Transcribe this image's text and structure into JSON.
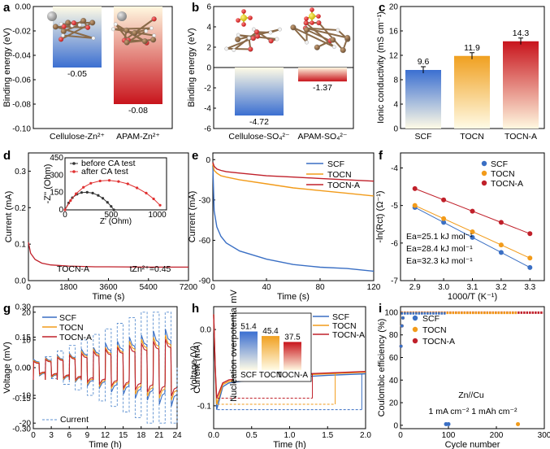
{
  "panels": [
    {
      "id": "a",
      "ylabel": "Binding energy (eV)",
      "yticks": [
        "0.00",
        "-0.02",
        "-0.04",
        "-0.06",
        "-0.08",
        "-0.10"
      ],
      "chart_data": {
        "type": "bar",
        "categories": [
          "Cellulose-Zn²⁺",
          "APAM-Zn²⁺"
        ],
        "values": [
          -0.05,
          -0.08
        ],
        "value_labels": [
          "-0.05",
          "-0.08"
        ],
        "ylabel": "Binding energy (eV)",
        "ylim": [
          -0.1,
          0.0
        ]
      }
    },
    {
      "id": "b",
      "ylabel": "Binding energy (eV)",
      "yticks": [
        "6",
        "4",
        "2",
        "0",
        "-2",
        "-4",
        "-6"
      ],
      "chart_data": {
        "type": "bar",
        "categories": [
          "Cellulose-SO₄²⁻",
          "APAM-SO₄²⁻"
        ],
        "values": [
          -4.72,
          -1.37
        ],
        "value_labels": [
          "-4.72",
          "-1.37"
        ],
        "ylabel": "Binding energy (eV)",
        "ylim": [
          -6,
          6
        ]
      }
    },
    {
      "id": "c",
      "ylabel": "Ionic conductivity (mS cm⁻¹)",
      "yticks": [
        "0",
        "4",
        "8",
        "12",
        "16",
        "20"
      ],
      "chart_data": {
        "type": "bar",
        "categories": [
          "SCF",
          "TOCN",
          "TOCN-A"
        ],
        "values": [
          9.6,
          11.9,
          14.3
        ],
        "value_labels": [
          "9.6",
          "11.9",
          "14.3"
        ],
        "ylabel": "Ionic conductivity (mS cm⁻¹)",
        "ylim": [
          0,
          20
        ]
      }
    },
    {
      "id": "d",
      "xlabel": "Time (s)",
      "ylabel": "Current (mA)",
      "xticks": [
        "0",
        "1800",
        "3600",
        "5400",
        "7200"
      ],
      "yticks": [
        "0.0",
        "0.1",
        "0.2",
        "0.3"
      ],
      "annot1": "TOCN-A",
      "annot2": "tZn²⁺=0.45",
      "chart_data": {
        "type": "line",
        "xlim": [
          0,
          7200
        ],
        "ylim": [
          0,
          0.35
        ],
        "xlabel": "Time (s)",
        "ylabel": "Current (mA)",
        "series": [
          {
            "x": [
              0,
              100,
              300,
              600,
              1000,
              1800,
              3000,
              3600,
              5400,
              7200
            ],
            "values": [
              0.105,
              0.075,
              0.058,
              0.048,
              0.043,
              0.04,
              0.038,
              0.038,
              0.037,
              0.037
            ]
          }
        ],
        "inset": {
          "type": "scatter",
          "xlabel": "Z' (Ohm)",
          "ylabel": "-Z'' (Ohm)",
          "xticks": [
            "0",
            "500",
            "1000"
          ],
          "yticks": [
            "0",
            "150",
            "300",
            "450"
          ],
          "xlim": [
            0,
            1100
          ],
          "ylim": [
            0,
            450
          ],
          "series": [
            {
              "name": "before CA test",
              "color": "#333333",
              "x": [
                0,
                40,
                80,
                130,
                180,
                240,
                300,
                360,
                410,
                460,
                500,
                530
              ],
              "values": [
                0,
                60,
                105,
                135,
                150,
                152,
                145,
                125,
                100,
                65,
                30,
                0
              ]
            },
            {
              "name": "after CA test",
              "color": "#e03030",
              "x": [
                0,
                60,
                120,
                200,
                280,
                380,
                480,
                580,
                680,
                780,
                880,
                960,
                1030
              ],
              "values": [
                0,
                80,
                140,
                195,
                230,
                250,
                255,
                245,
                225,
                190,
                145,
                95,
                40
              ]
            }
          ]
        }
      }
    },
    {
      "id": "e",
      "xlabel": "Time (s)",
      "ylabel": "Current (mA)",
      "xticks": [
        "0",
        "40",
        "80",
        "120"
      ],
      "yticks": [
        "0",
        "-30",
        "-60",
        "-90"
      ],
      "chart_data": {
        "type": "line",
        "xlim": [
          0,
          120
        ],
        "ylim": [
          -90,
          5
        ],
        "xlabel": "Time (s)",
        "ylabel": "Current (mA)",
        "series": [
          {
            "name": "SCF",
            "color": "#3a6fc4",
            "x": [
              0,
              1,
              3,
              6,
              10,
              20,
              40,
              60,
              80,
              100,
              120
            ],
            "values": [
              -5,
              -38,
              -50,
              -57,
              -62,
              -68,
              -74,
              -78,
              -80,
              -81,
              -83
            ]
          },
          {
            "name": "TOCN",
            "color": "#f29b1a",
            "x": [
              0,
              1,
              3,
              6,
              10,
              20,
              40,
              60,
              80,
              100,
              120
            ],
            "values": [
              -3,
              -8,
              -10,
              -12,
              -13,
              -15,
              -18,
              -21,
              -23,
              -25,
              -27
            ]
          },
          {
            "name": "TOCN-A",
            "color": "#c0202a",
            "x": [
              0,
              1,
              3,
              6,
              10,
              20,
              40,
              60,
              80,
              100,
              120
            ],
            "values": [
              -2,
              -5,
              -7,
              -8,
              -9,
              -10,
              -12,
              -13,
              -14,
              -15,
              -16
            ]
          }
        ]
      }
    },
    {
      "id": "f",
      "xlabel": "1000/T (K⁻¹)",
      "ylabel": "-ln(Rct) (Ω⁻¹)",
      "xticks": [
        "2.9",
        "3.0",
        "3.1",
        "3.2",
        "3.3"
      ],
      "yticks": [
        "-4",
        "-5",
        "-6",
        "-7"
      ],
      "ea": [
        "Ea=25.1 kJ mol⁻¹",
        "Ea=28.4 kJ mol⁻¹",
        "Ea=32.3 kJ mol⁻¹"
      ],
      "chart_data": {
        "type": "scatter",
        "xlim": [
          2.85,
          3.35
        ],
        "ylim": [
          -7.0,
          -3.6
        ],
        "xlabel": "1000/T (K⁻¹)",
        "ylabel": "-ln(Rct) (Ω⁻¹)",
        "series": [
          {
            "name": "SCF",
            "color": "#3a6fc4",
            "x": [
              2.9,
              3.0,
              3.1,
              3.2,
              3.3
            ],
            "values": [
              -5.05,
              -5.45,
              -5.85,
              -6.25,
              -6.65
            ]
          },
          {
            "name": "TOCN",
            "color": "#f29b1a",
            "x": [
              2.9,
              3.0,
              3.1,
              3.2,
              3.3
            ],
            "values": [
              -5.0,
              -5.35,
              -5.7,
              -6.05,
              -6.4
            ]
          },
          {
            "name": "TOCN-A",
            "color": "#c0202a",
            "x": [
              2.9,
              3.0,
              3.1,
              3.2,
              3.3
            ],
            "values": [
              -4.55,
              -4.85,
              -5.15,
              -5.45,
              -5.75
            ]
          }
        ]
      }
    },
    {
      "id": "g",
      "xlabel": "Time (h)",
      "ylabel": "Voltage (mV)",
      "ylabel2": "Current (mA)",
      "xticks": [
        "0",
        "3",
        "6",
        "9",
        "12",
        "15",
        "18",
        "21",
        "24"
      ],
      "yticks": [
        "0.30",
        "0.15",
        "0.00",
        "-0.15",
        "-0.30"
      ],
      "yticks2": [
        "20",
        "10",
        "0",
        "-10",
        "-20"
      ],
      "current_label": "Current",
      "chart_data": {
        "type": "line",
        "xlim": [
          0,
          24
        ],
        "ylim": [
          -0.3,
          0.3
        ],
        "xlabel": "Time (h)",
        "ylabel": "Voltage (mV)",
        "series": [
          {
            "name": "SCF",
            "color": "#3a6fc4",
            "amplitudes": [
              0.04,
              0.05,
              0.06,
              0.07,
              0.09,
              0.1,
              0.12,
              0.13,
              0.15,
              0.16,
              0.18,
              0.19
            ]
          },
          {
            "name": "TOCN",
            "color": "#f29b1a",
            "amplitudes": [
              0.035,
              0.045,
              0.055,
              0.065,
              0.08,
              0.09,
              0.1,
              0.11,
              0.13,
              0.14,
              0.15,
              0.16
            ]
          },
          {
            "name": "TOCN-A",
            "color": "#c0202a",
            "amplitudes": [
              0.03,
              0.04,
              0.05,
              0.06,
              0.07,
              0.08,
              0.09,
              0.1,
              0.11,
              0.12,
              0.13,
              0.14
            ]
          },
          {
            "name": "Current",
            "color": "#5b8fd0",
            "amplitudes_mA": [
              2,
              4,
              6,
              8,
              10,
              12,
              14,
              16,
              18,
              20,
              20,
              20
            ]
          }
        ]
      }
    },
    {
      "id": "h",
      "xlabel": "Time (h)",
      "ylabel": "Voltage (V)",
      "xticks": [
        "0.0",
        "0.5",
        "1.0",
        "1.5",
        "2.0"
      ],
      "yticks": [
        "0.0",
        "-0.1"
      ],
      "inset": {
        "ylabel": "Nucleation overpotential mV",
        "categories": [
          "SCF",
          "TOCN",
          "TOCN-A"
        ],
        "values": [
          51.4,
          45.4,
          37.5
        ],
        "value_labels": [
          "51.4",
          "45.4",
          "37.5"
        ]
      },
      "chart_data": {
        "type": "line",
        "xlim": [
          0,
          2
        ],
        "ylim": [
          -0.13,
          0.03
        ],
        "xlabel": "Time (h)",
        "ylabel": "Voltage (V)",
        "series": [
          {
            "name": "SCF",
            "color": "#3a6fc4",
            "x": [
              0,
              0.02,
              0.04,
              0.08,
              0.12,
              0.2,
              0.5,
              1.0,
              1.5,
              2.0
            ],
            "values": [
              0.02,
              -0.05,
              -0.105,
              -0.09,
              -0.075,
              -0.07,
              -0.066,
              -0.063,
              -0.06,
              -0.058
            ]
          },
          {
            "name": "TOCN",
            "color": "#f29b1a",
            "x": [
              0,
              0.02,
              0.04,
              0.08,
              0.12,
              0.2,
              0.5,
              1.0,
              1.5,
              2.0
            ],
            "values": [
              0.02,
              -0.05,
              -0.098,
              -0.085,
              -0.072,
              -0.068,
              -0.064,
              -0.06,
              -0.058,
              -0.056
            ]
          },
          {
            "name": "TOCN-A",
            "color": "#c0202a",
            "x": [
              0,
              0.02,
              0.04,
              0.08,
              0.12,
              0.2,
              0.5,
              1.0,
              1.5,
              2.0
            ],
            "values": [
              0.02,
              -0.05,
              -0.09,
              -0.08,
              -0.07,
              -0.066,
              -0.062,
              -0.059,
              -0.057,
              -0.055
            ]
          }
        ]
      }
    },
    {
      "id": "i",
      "xlabel": "Cycle number",
      "ylabel": "Coulombic efficiency (%)",
      "xticks": [
        "0",
        "100",
        "200",
        "300"
      ],
      "yticks": [
        "0",
        "20",
        "40",
        "60",
        "80",
        "100"
      ],
      "annot1": "Zn//Cu",
      "annot2": "1 mA cm⁻² 1 mAh cm⁻²",
      "chart_data": {
        "type": "scatter",
        "xlim": [
          0,
          300
        ],
        "ylim": [
          -3,
          105
        ],
        "xlabel": "Cycle number",
        "ylabel": "Coulombic efficiency (%)",
        "series": [
          {
            "name": "SCF",
            "color": "#3a6fc4",
            "range": [
              1,
              95
            ],
            "level": 99,
            "outliers": [
              [
                95,
                1
              ],
              [
                100,
                1
              ]
            ]
          },
          {
            "name": "TOCN",
            "color": "#f29b1a",
            "range": [
              1,
              245
            ],
            "level": 99.5,
            "outliers": [
              [
                245,
                1
              ]
            ]
          },
          {
            "name": "TOCN-A",
            "color": "#c0202a",
            "range": [
              1,
              300
            ],
            "level": 99.7,
            "outliers": []
          }
        ]
      }
    }
  ],
  "panel_labels": [
    "a",
    "b",
    "c",
    "d",
    "e",
    "f",
    "g",
    "h",
    "i"
  ]
}
